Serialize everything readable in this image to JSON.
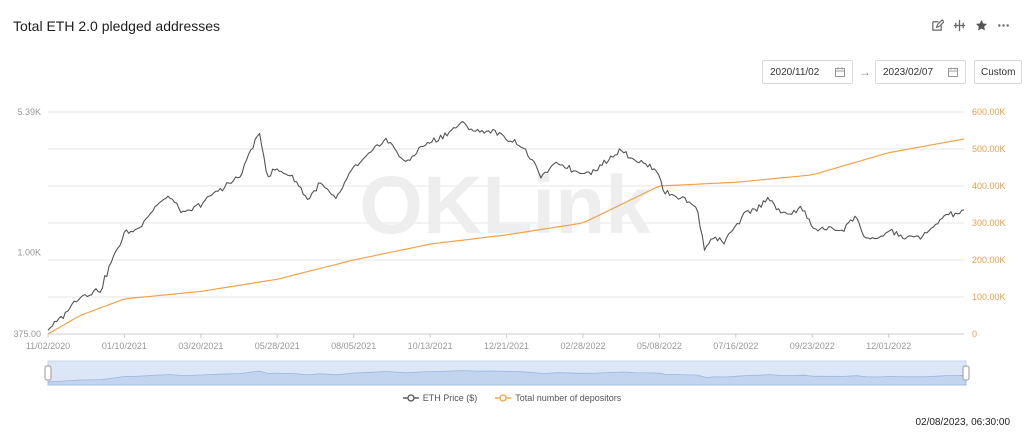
{
  "header": {
    "title": "Total ETH 2.0 pledged addresses"
  },
  "toolbar": {
    "icons": [
      "edit-icon",
      "compare-icon",
      "star-icon",
      "more-icon"
    ]
  },
  "range": {
    "start": "2020/11/02",
    "end": "2023/02/07",
    "arrow": "→",
    "custom_label": "Custom"
  },
  "watermark": "OKLink",
  "timestamp": "02/08/2023, 06:30:00",
  "colors": {
    "price": "#555555",
    "depositors": "#f0a34a",
    "grid": "#e6e6e6",
    "axis_text": "#999999",
    "right_axis_text": "#e8a04a",
    "navigator_fill": "#dbe6f7"
  },
  "chart_data": {
    "type": "line",
    "x_ticks": [
      "11/02/2020",
      "01/10/2021",
      "03/20/2021",
      "05/28/2021",
      "08/05/2021",
      "10/13/2021",
      "12/21/2021",
      "02/28/2022",
      "05/08/2022",
      "07/16/2022",
      "09/23/2022",
      "12/01/2022"
    ],
    "y_left_ticks": [
      "5.39K",
      "1.00K",
      "375.00"
    ],
    "y_left_scale": "log",
    "y_left_range": [
      375,
      5390
    ],
    "y_right_ticks": [
      "600.00K",
      "500.00K",
      "400.00K",
      "300.00K",
      "200.00K",
      "100.00K",
      "0"
    ],
    "y_right_range": [
      0,
      600000
    ],
    "legend_position": "bottom",
    "series": [
      {
        "name": "ETH Price ($)",
        "axis": "left",
        "x": [
          "2020-11-02",
          "2020-11-15",
          "2020-12-01",
          "2020-12-20",
          "2021-01-04",
          "2021-01-10",
          "2021-01-22",
          "2021-02-08",
          "2021-02-20",
          "2021-03-05",
          "2021-03-20",
          "2021-04-05",
          "2021-04-15",
          "2021-04-25",
          "2021-05-05",
          "2021-05-12",
          "2021-05-19",
          "2021-05-25",
          "2021-06-10",
          "2021-06-25",
          "2021-07-05",
          "2021-07-20",
          "2021-08-05",
          "2021-08-20",
          "2021-09-03",
          "2021-09-21",
          "2021-10-05",
          "2021-10-20",
          "2021-11-01",
          "2021-11-10",
          "2021-11-25",
          "2021-12-08",
          "2021-12-21",
          "2022-01-01",
          "2022-01-10",
          "2022-01-22",
          "2022-02-05",
          "2022-02-20",
          "2022-02-28",
          "2022-03-10",
          "2022-03-25",
          "2022-04-03",
          "2022-04-15",
          "2022-04-30",
          "2022-05-08",
          "2022-05-12",
          "2022-05-25",
          "2022-06-10",
          "2022-06-18",
          "2022-06-25",
          "2022-07-05",
          "2022-07-16",
          "2022-07-25",
          "2022-08-05",
          "2022-08-14",
          "2022-08-25",
          "2022-09-05",
          "2022-09-14",
          "2022-09-23",
          "2022-10-05",
          "2022-10-20",
          "2022-11-01",
          "2022-11-09",
          "2022-11-20",
          "2022-12-01",
          "2022-12-15",
          "2022-12-31",
          "2023-01-10",
          "2023-01-20",
          "2023-01-31",
          "2023-02-07"
        ],
        "values": [
          395,
          460,
          590,
          640,
          1040,
          1260,
          1320,
          1750,
          1950,
          1570,
          1790,
          2100,
          2300,
          2500,
          3500,
          4100,
          2450,
          2700,
          2500,
          1850,
          2300,
          1850,
          2750,
          3250,
          3900,
          2900,
          3550,
          3900,
          4300,
          4700,
          4250,
          4300,
          3950,
          3700,
          3200,
          2450,
          2950,
          2650,
          2600,
          2650,
          3100,
          3450,
          3050,
          2800,
          2600,
          2050,
          1950,
          1750,
          1020,
          1200,
          1130,
          1350,
          1600,
          1700,
          1950,
          1600,
          1600,
          1700,
          1330,
          1330,
          1300,
          1550,
          1200,
          1150,
          1300,
          1200,
          1200,
          1330,
          1560,
          1580,
          1650
        ]
      },
      {
        "name": "Total number of depositors",
        "axis": "right",
        "x": [
          "2020-11-02",
          "2020-12-01",
          "2021-01-10",
          "2021-03-20",
          "2021-05-28",
          "2021-08-05",
          "2021-10-13",
          "2021-12-21",
          "2022-02-28",
          "2022-05-08",
          "2022-07-16",
          "2022-09-23",
          "2022-12-01",
          "2023-02-07"
        ],
        "values": [
          0,
          50000,
          95000,
          115000,
          148000,
          200000,
          243000,
          268000,
          300000,
          400000,
          410000,
          430000,
          490000,
          527000
        ]
      }
    ],
    "navigator": {
      "start": "11/02/2020",
      "end": "02/07/2023"
    }
  }
}
